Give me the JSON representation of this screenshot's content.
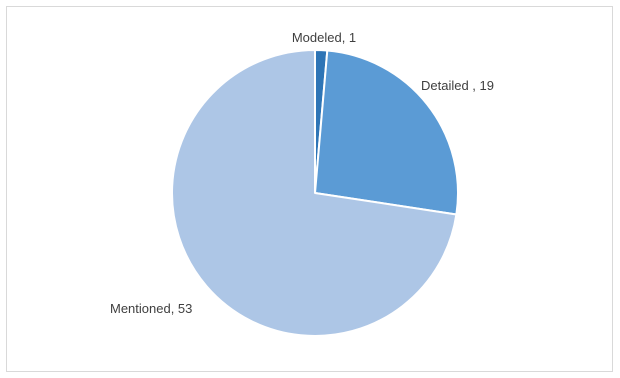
{
  "chart_data": {
    "type": "pie",
    "title": "",
    "categories": [
      "Modeled",
      "Detailed ",
      "Mentioned"
    ],
    "values": [
      1,
      19,
      53
    ],
    "labels": [
      "Modeled, 1",
      "Detailed , 19",
      "Mentioned, 53"
    ],
    "colors": [
      "#2e75b6",
      "#5b9bd5",
      "#adc6e6"
    ],
    "start_angle_deg": 0,
    "direction": "clockwise",
    "legend": "none",
    "data_labels": "outside"
  }
}
